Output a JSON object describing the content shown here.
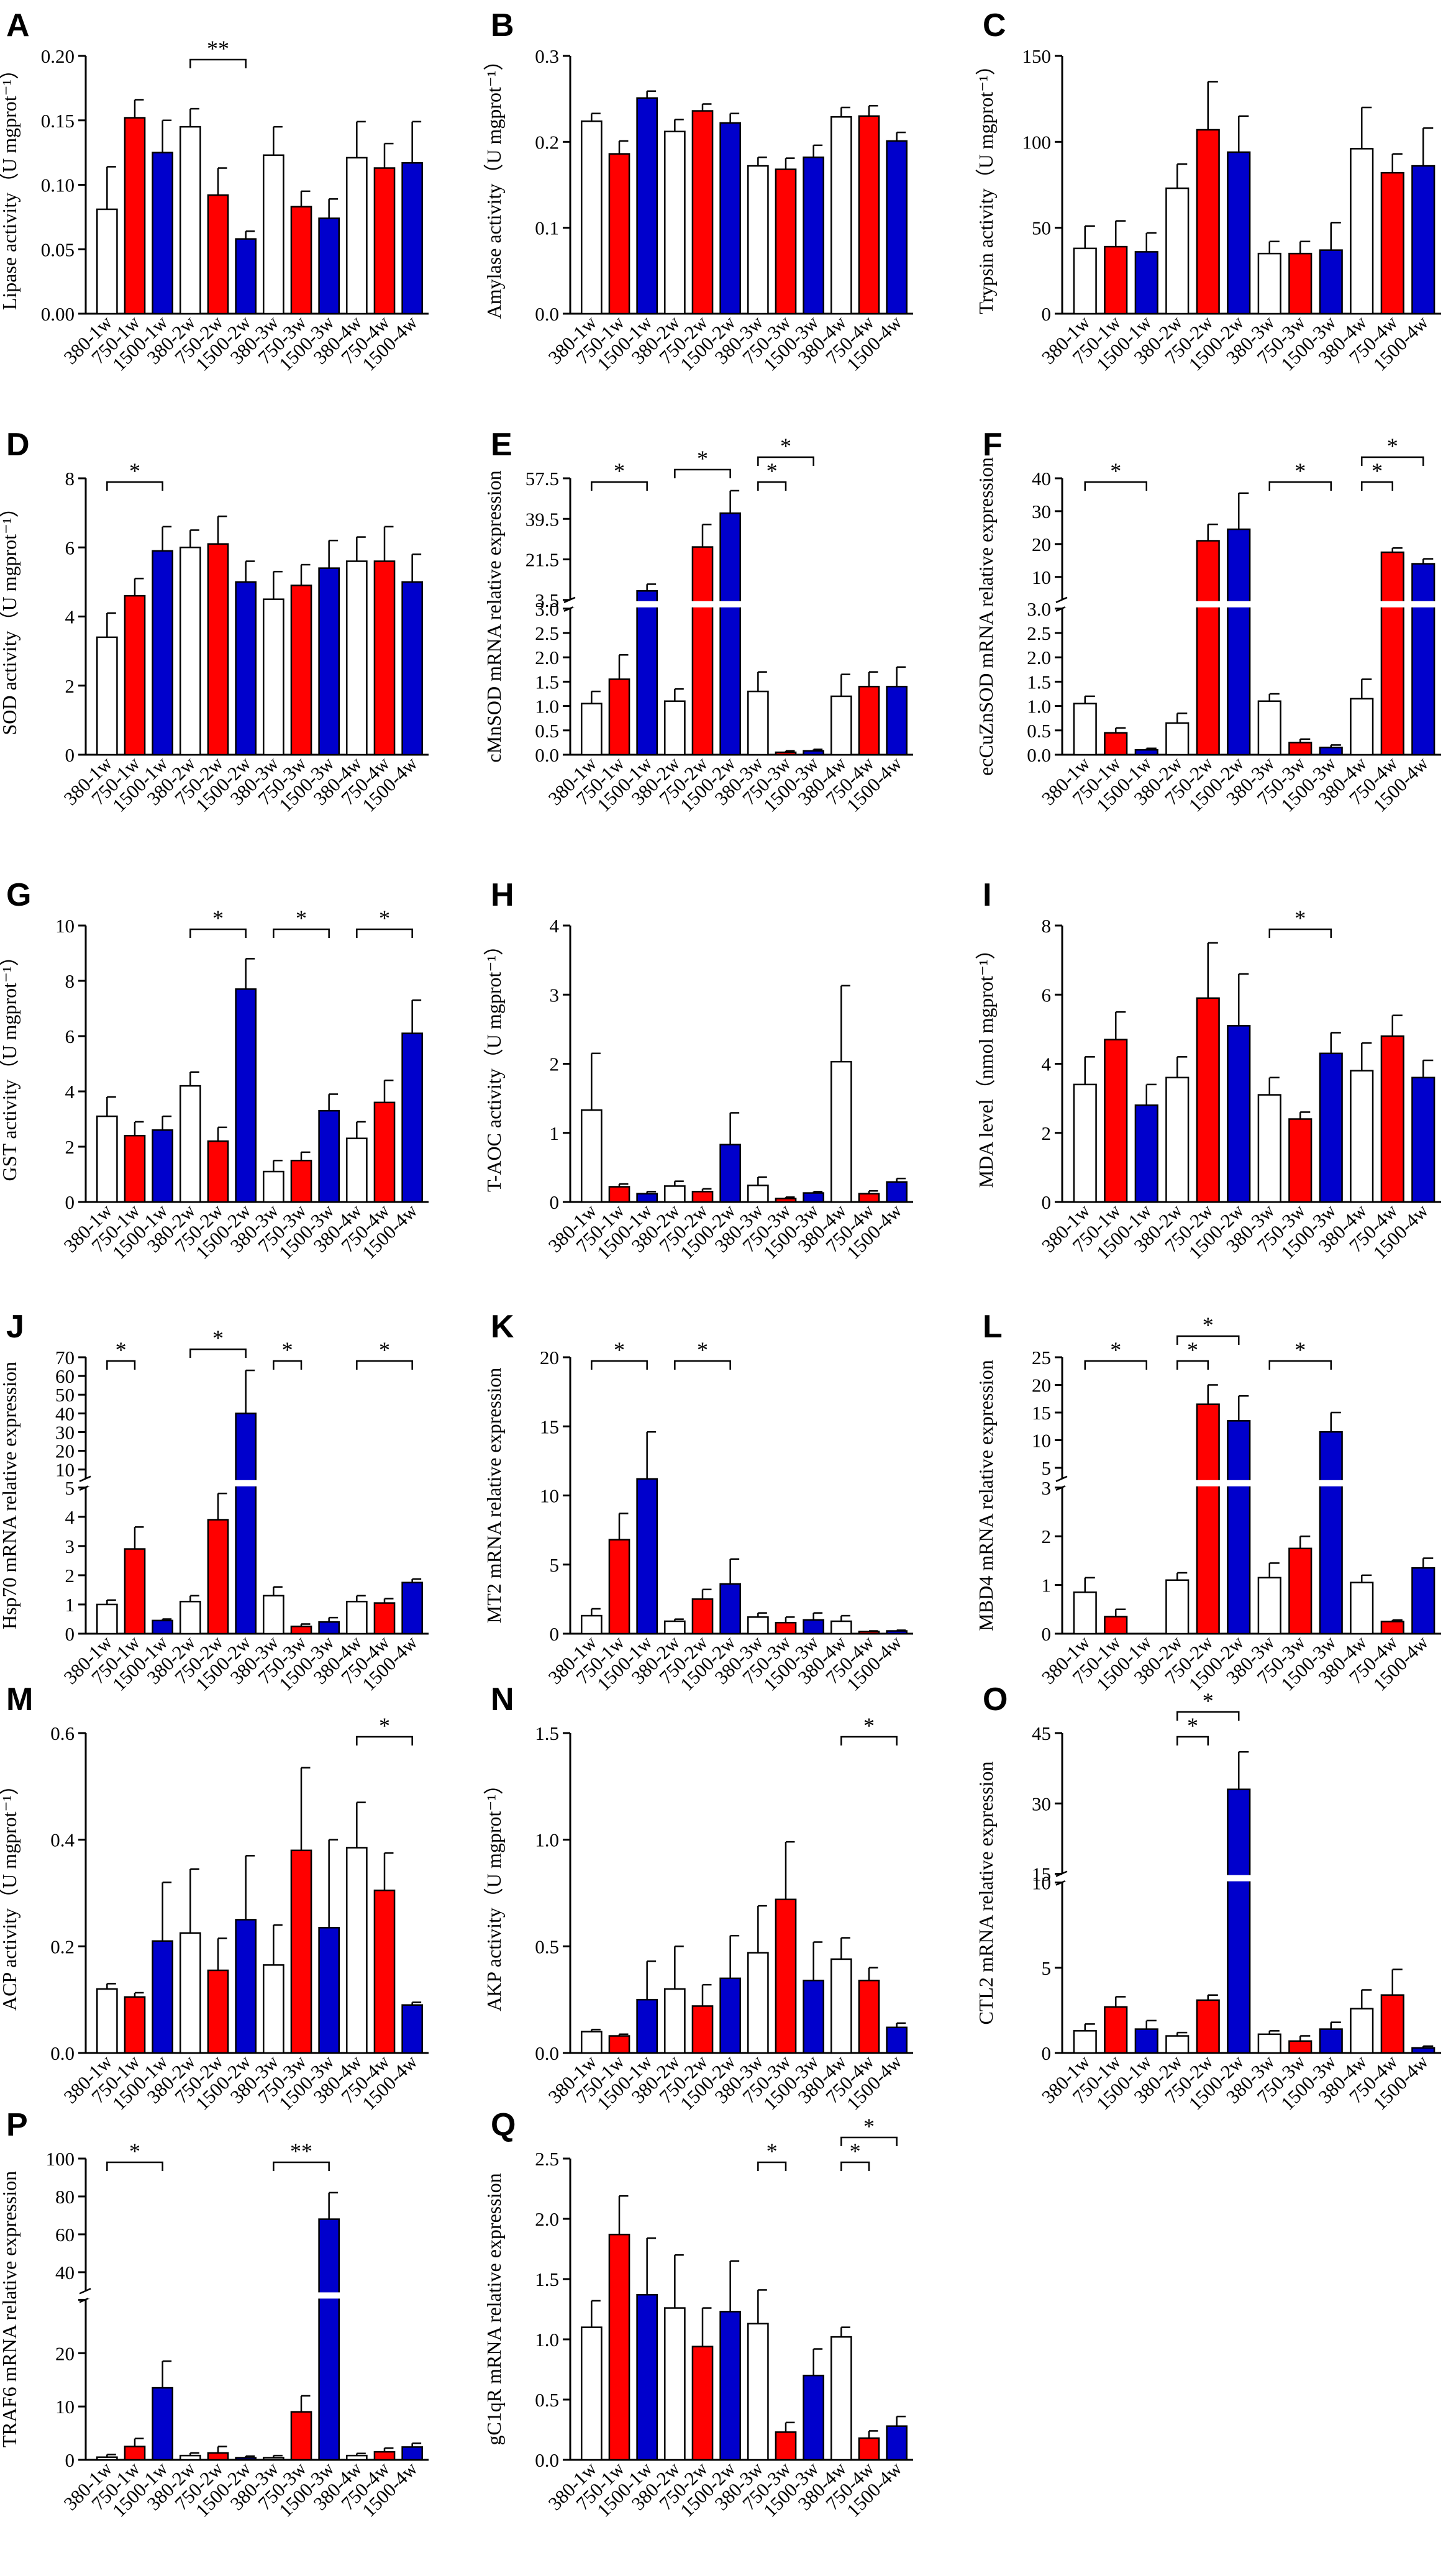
{
  "figure": {
    "categories": [
      "380-1w",
      "750-1w",
      "1500-1w",
      "380-2w",
      "750-2w",
      "1500-2w",
      "380-3w",
      "750-3w",
      "1500-3w",
      "380-4w",
      "750-4w",
      "1500-4w"
    ],
    "bar_colors": [
      "#ffffff",
      "#ff0000",
      "#0000cc",
      "#ffffff",
      "#ff0000",
      "#0000cc",
      "#ffffff",
      "#ff0000",
      "#0000cc",
      "#ffffff",
      "#ff0000",
      "#0000cc"
    ],
    "edge_color": "#000000"
  },
  "chart_data": [
    {
      "panel": "A",
      "type": "bar",
      "ylabel": "Lipase activity（U mgprot⁻¹）",
      "ylim": [
        0,
        0.2
      ],
      "ticks": [
        0,
        0.05,
        0.1,
        0.15,
        0.2
      ],
      "tick_labels": [
        "0.00",
        "0.05",
        "0.10",
        "0.15",
        "0.20"
      ],
      "values": [
        0.081,
        0.152,
        0.125,
        0.145,
        0.092,
        0.058,
        0.123,
        0.083,
        0.074,
        0.121,
        0.113,
        0.117
      ],
      "errors": [
        0.033,
        0.014,
        0.025,
        0.014,
        0.021,
        0.006,
        0.022,
        0.012,
        0.015,
        0.028,
        0.019,
        0.032
      ],
      "annotations": [
        {
          "from": 3,
          "to": 5,
          "label": "**"
        }
      ]
    },
    {
      "panel": "B",
      "type": "bar",
      "ylabel": "Amylase activity（U mgprot⁻¹）",
      "ylim": [
        0,
        0.3
      ],
      "ticks": [
        0,
        0.1,
        0.2,
        0.3
      ],
      "tick_labels": [
        "0.0",
        "0.1",
        "0.2",
        "0.3"
      ],
      "values": [
        0.224,
        0.186,
        0.251,
        0.212,
        0.236,
        0.222,
        0.172,
        0.168,
        0.182,
        0.229,
        0.23,
        0.201
      ],
      "errors": [
        0.009,
        0.015,
        0.008,
        0.014,
        0.008,
        0.011,
        0.01,
        0.013,
        0.014,
        0.011,
        0.012,
        0.01
      ],
      "annotations": []
    },
    {
      "panel": "C",
      "type": "bar",
      "ylabel": "Trypsin activity（U mgprot⁻¹）",
      "ylim": [
        0,
        150
      ],
      "ticks": [
        0,
        50,
        100,
        150
      ],
      "tick_labels": [
        "0",
        "50",
        "100",
        "150"
      ],
      "values": [
        38,
        39,
        36,
        73,
        107,
        94,
        35,
        35,
        37,
        96,
        82,
        86
      ],
      "errors": [
        13,
        15,
        11,
        14,
        28,
        21,
        7,
        7,
        16,
        24,
        11,
        22
      ],
      "annotations": []
    },
    {
      "panel": "D",
      "type": "bar",
      "ylabel": "SOD activity（U mgprot⁻¹）",
      "ylim": [
        0,
        8
      ],
      "ticks": [
        0,
        2,
        4,
        6,
        8
      ],
      "tick_labels": [
        "0",
        "2",
        "4",
        "6",
        "8"
      ],
      "values": [
        3.4,
        4.6,
        5.9,
        6.0,
        6.1,
        5.0,
        4.5,
        4.9,
        5.4,
        5.6,
        5.6,
        5.0
      ],
      "errors": [
        0.7,
        0.5,
        0.7,
        0.5,
        0.8,
        0.6,
        0.8,
        0.6,
        0.8,
        0.7,
        1.0,
        0.8
      ],
      "annotations": [
        {
          "from": 0,
          "to": 2,
          "label": "*"
        }
      ]
    },
    {
      "panel": "E",
      "type": "bar",
      "ylabel": "cMnSOD mRNA relative expression",
      "broken_axis": {
        "lower": [
          0,
          3
        ],
        "upper": [
          3.5,
          57.5
        ]
      },
      "lower_ticks": [
        0,
        0.5,
        1,
        1.5,
        2,
        2.5,
        3
      ],
      "lower_tick_labels": [
        "0.0",
        "0.5",
        "1.0",
        "1.5",
        "2.0",
        "2.5",
        "3.0"
      ],
      "upper_ticks": [
        3.5,
        21.5,
        39.5,
        57.5
      ],
      "upper_tick_labels": [
        "3.5",
        "21.5",
        "39.5",
        "57.5"
      ],
      "values": [
        1.05,
        1.55,
        7.5,
        1.1,
        27,
        42,
        1.3,
        0.05,
        0.08,
        1.2,
        1.4,
        1.4
      ],
      "errors": [
        0.25,
        0.5,
        3,
        0.25,
        10,
        10,
        0.4,
        0.03,
        0.03,
        0.45,
        0.3,
        0.4
      ],
      "annotations": [
        {
          "from": 0,
          "to": 2,
          "label": "*"
        },
        {
          "from": 3,
          "to": 5,
          "label": "*"
        },
        {
          "from": 6,
          "to": 7,
          "label": "*"
        },
        {
          "from": 6,
          "to": 8,
          "label": "*"
        }
      ]
    },
    {
      "panel": "F",
      "type": "bar",
      "ylabel": "ecCuZnSOD mRNA relative expression",
      "broken_axis": {
        "lower": [
          0,
          3
        ],
        "upper": [
          3,
          40
        ]
      },
      "lower_ticks": [
        0,
        0.5,
        1,
        1.5,
        2,
        2.5,
        3
      ],
      "lower_tick_labels": [
        "0.0",
        "0.5",
        "1.0",
        "1.5",
        "2.0",
        "2.5",
        "3.0"
      ],
      "upper_ticks": [
        10,
        20,
        30,
        40
      ],
      "upper_tick_labels": [
        "10",
        "20",
        "30",
        "40"
      ],
      "values": [
        1.05,
        0.45,
        0.1,
        0.65,
        21,
        24.5,
        1.1,
        0.25,
        0.15,
        1.15,
        17.5,
        14
      ],
      "errors": [
        0.15,
        0.1,
        0.03,
        0.2,
        5,
        11,
        0.15,
        0.07,
        0.05,
        0.4,
        1.3,
        1.5
      ],
      "annotations": [
        {
          "from": 0,
          "to": 2,
          "label": "*"
        },
        {
          "from": 6,
          "to": 8,
          "label": "*"
        },
        {
          "from": 9,
          "to": 10,
          "label": "*"
        },
        {
          "from": 9,
          "to": 11,
          "label": "*"
        }
      ]
    },
    {
      "panel": "G",
      "type": "bar",
      "ylabel": "GST activity（U mgprot⁻¹）",
      "ylim": [
        0,
        10
      ],
      "ticks": [
        0,
        2,
        4,
        6,
        8,
        10
      ],
      "tick_labels": [
        "0",
        "2",
        "4",
        "6",
        "8",
        "10"
      ],
      "values": [
        3.1,
        2.4,
        2.6,
        4.2,
        2.2,
        7.7,
        1.1,
        1.5,
        3.3,
        2.3,
        3.6,
        6.1
      ],
      "errors": [
        0.7,
        0.5,
        0.5,
        0.5,
        0.5,
        1.1,
        0.4,
        0.3,
        0.6,
        0.6,
        0.8,
        1.2
      ],
      "annotations": [
        {
          "from": 3,
          "to": 5,
          "label": "*"
        },
        {
          "from": 6,
          "to": 8,
          "label": "*"
        },
        {
          "from": 9,
          "to": 11,
          "label": "*"
        }
      ]
    },
    {
      "panel": "H",
      "type": "bar",
      "ylabel": "T-AOC activity（U mgprot⁻¹）",
      "ylim": [
        0,
        4
      ],
      "ticks": [
        0,
        1,
        2,
        3,
        4
      ],
      "tick_labels": [
        "0",
        "1",
        "2",
        "3",
        "4"
      ],
      "values": [
        1.33,
        0.22,
        0.12,
        0.23,
        0.15,
        0.83,
        0.24,
        0.05,
        0.13,
        2.03,
        0.12,
        0.29
      ],
      "errors": [
        0.82,
        0.04,
        0.03,
        0.07,
        0.04,
        0.46,
        0.12,
        0.02,
        0.02,
        1.1,
        0.04,
        0.05
      ],
      "annotations": []
    },
    {
      "panel": "I",
      "type": "bar",
      "ylabel": "MDA level（nmol mgprot⁻¹）",
      "ylim": [
        0,
        8
      ],
      "ticks": [
        0,
        2,
        4,
        6,
        8
      ],
      "tick_labels": [
        "0",
        "2",
        "4",
        "6",
        "8"
      ],
      "values": [
        3.4,
        4.7,
        2.8,
        3.6,
        5.9,
        5.1,
        3.1,
        2.4,
        4.3,
        3.8,
        4.8,
        3.6
      ],
      "errors": [
        0.8,
        0.8,
        0.6,
        0.6,
        1.6,
        1.5,
        0.5,
        0.2,
        0.6,
        0.8,
        0.6,
        0.5
      ],
      "annotations": [
        {
          "from": 6,
          "to": 8,
          "label": "*"
        }
      ]
    },
    {
      "panel": "J",
      "type": "bar",
      "ylabel": "Hsp70 mRNA relative expression",
      "broken_axis": {
        "lower": [
          0,
          5
        ],
        "upper": [
          5,
          70
        ]
      },
      "lower_ticks": [
        0,
        1,
        2,
        3,
        4,
        5
      ],
      "lower_tick_labels": [
        "0",
        "1",
        "2",
        "3",
        "4",
        "5"
      ],
      "upper_ticks": [
        10,
        20,
        30,
        40,
        50,
        60,
        70
      ],
      "upper_tick_labels": [
        "10",
        "20",
        "30",
        "40",
        "50",
        "60",
        "70"
      ],
      "values": [
        1.0,
        2.9,
        0.45,
        1.1,
        3.9,
        40,
        1.3,
        0.25,
        0.4,
        1.1,
        1.05,
        1.75
      ],
      "errors": [
        0.15,
        0.75,
        0.05,
        0.2,
        0.9,
        23,
        0.3,
        0.08,
        0.15,
        0.2,
        0.15,
        0.12
      ],
      "annotations": [
        {
          "from": 0,
          "to": 1,
          "label": "*"
        },
        {
          "from": 3,
          "to": 5,
          "label": "*"
        },
        {
          "from": 6,
          "to": 7,
          "label": "*"
        },
        {
          "from": 9,
          "to": 11,
          "label": "*"
        }
      ]
    },
    {
      "panel": "K",
      "type": "bar",
      "ylabel": "MT2 mRNA relative expression",
      "ylim": [
        0,
        20
      ],
      "ticks": [
        0,
        5,
        10,
        15,
        20
      ],
      "tick_labels": [
        "0",
        "5",
        "10",
        "15",
        "20"
      ],
      "values": [
        1.3,
        6.8,
        11.2,
        0.9,
        2.5,
        3.6,
        1.2,
        0.8,
        1.0,
        0.9,
        0.15,
        0.2
      ],
      "errors": [
        0.5,
        1.9,
        3.4,
        0.15,
        0.7,
        1.8,
        0.3,
        0.4,
        0.5,
        0.4,
        0.05,
        0.05
      ],
      "annotations": [
        {
          "from": 0,
          "to": 2,
          "label": "*"
        },
        {
          "from": 3,
          "to": 5,
          "label": "*"
        }
      ]
    },
    {
      "panel": "L",
      "type": "bar",
      "ylabel": "MBD4 mRNA relative expression",
      "broken_axis": {
        "lower": [
          0,
          3
        ],
        "upper": [
          3,
          25
        ]
      },
      "lower_ticks": [
        0,
        1,
        2,
        3
      ],
      "lower_tick_labels": [
        "0",
        "1",
        "2",
        "3"
      ],
      "upper_ticks": [
        5,
        10,
        15,
        20,
        25
      ],
      "upper_tick_labels": [
        "5",
        "10",
        "15",
        "20",
        "25"
      ],
      "values": [
        0.85,
        0.35,
        0,
        1.1,
        16.5,
        13.5,
        1.15,
        1.75,
        11.5,
        1.05,
        0.25,
        1.35
      ],
      "errors": [
        0.3,
        0.15,
        0,
        0.15,
        3.5,
        4.5,
        0.3,
        0.25,
        3.5,
        0.15,
        0.03,
        0.2
      ],
      "annotations": [
        {
          "from": 0,
          "to": 2,
          "label": "*"
        },
        {
          "from": 3,
          "to": 4,
          "label": "*"
        },
        {
          "from": 3,
          "to": 5,
          "label": "*"
        },
        {
          "from": 6,
          "to": 8,
          "label": "*"
        }
      ]
    },
    {
      "panel": "M",
      "type": "bar",
      "ylabel": "ACP activity（U mgprot⁻¹）",
      "ylim": [
        0,
        0.6
      ],
      "ticks": [
        0,
        0.2,
        0.4,
        0.6
      ],
      "tick_labels": [
        "0.0",
        "0.2",
        "0.4",
        "0.6"
      ],
      "values": [
        0.12,
        0.105,
        0.21,
        0.225,
        0.155,
        0.25,
        0.165,
        0.38,
        0.235,
        0.385,
        0.305,
        0.09
      ],
      "errors": [
        0.01,
        0.008,
        0.11,
        0.12,
        0.06,
        0.12,
        0.075,
        0.155,
        0.165,
        0.085,
        0.07,
        0.005
      ],
      "annotations": [
        {
          "from": 9,
          "to": 11,
          "label": "*"
        }
      ]
    },
    {
      "panel": "N",
      "type": "bar",
      "ylabel": "AKP activity（U mgprot⁻¹）",
      "ylim": [
        0,
        1.5
      ],
      "ticks": [
        0,
        0.5,
        1,
        1.5
      ],
      "tick_labels": [
        "0.0",
        "0.5",
        "1.0",
        "1.5"
      ],
      "values": [
        0.1,
        0.08,
        0.25,
        0.3,
        0.22,
        0.35,
        0.47,
        0.72,
        0.34,
        0.44,
        0.34,
        0.12
      ],
      "errors": [
        0.01,
        0.008,
        0.18,
        0.2,
        0.1,
        0.2,
        0.22,
        0.27,
        0.18,
        0.1,
        0.06,
        0.02
      ],
      "annotations": [
        {
          "from": 9,
          "to": 11,
          "label": "*"
        }
      ]
    },
    {
      "panel": "O",
      "type": "bar",
      "ylabel": "CTL2 mRNA relative expression",
      "broken_axis": {
        "lower": [
          0,
          10
        ],
        "upper": [
          15,
          45
        ]
      },
      "lower_ticks": [
        0,
        5,
        10
      ],
      "lower_tick_labels": [
        "0",
        "5",
        "10"
      ],
      "upper_ticks": [
        15,
        30,
        45
      ],
      "upper_tick_labels": [
        "15",
        "30",
        "45"
      ],
      "values": [
        1.3,
        2.7,
        1.4,
        1.0,
        3.1,
        33,
        1.1,
        0.7,
        1.4,
        2.6,
        3.4,
        0.3
      ],
      "errors": [
        0.4,
        0.6,
        0.5,
        0.2,
        0.3,
        8,
        0.2,
        0.3,
        0.4,
        1.1,
        1.5,
        0.1
      ],
      "annotations": [
        {
          "from": 3,
          "to": 4,
          "label": "*"
        },
        {
          "from": 3,
          "to": 5,
          "label": "*"
        }
      ]
    },
    {
      "panel": "P",
      "type": "bar",
      "ylabel": "TRAF6 mRNA relative expression",
      "broken_axis": {
        "lower": [
          0,
          30
        ],
        "upper": [
          30,
          100
        ]
      },
      "lower_ticks": [
        0,
        10,
        20,
        30
      ],
      "lower_tick_labels": [
        "0",
        "10",
        "20",
        ""
      ],
      "upper_ticks": [
        40,
        60,
        80,
        100
      ],
      "upper_tick_labels": [
        "40",
        "60",
        "80",
        "100"
      ],
      "values": [
        0.5,
        2.5,
        13.5,
        0.8,
        1.3,
        0.4,
        0.4,
        9,
        68,
        0.8,
        1.5,
        2.4
      ],
      "errors": [
        0.5,
        1.5,
        5,
        0.5,
        1.2,
        0.3,
        0.4,
        3,
        14,
        0.4,
        0.7,
        0.7
      ],
      "annotations": [
        {
          "from": 0,
          "to": 2,
          "label": "*"
        },
        {
          "from": 6,
          "to": 8,
          "label": "**"
        }
      ]
    },
    {
      "panel": "Q",
      "type": "bar",
      "ylabel": "gC1qR mRNA relative expression",
      "ylim": [
        0,
        2.5
      ],
      "ticks": [
        0,
        0.5,
        1,
        1.5,
        2,
        2.5
      ],
      "tick_labels": [
        "0.0",
        "0.5",
        "1.0",
        "1.5",
        "2.0",
        "2.5"
      ],
      "values": [
        1.1,
        1.87,
        1.37,
        1.26,
        0.94,
        1.23,
        1.13,
        0.23,
        0.7,
        1.02,
        0.18,
        0.28
      ],
      "errors": [
        0.22,
        0.32,
        0.47,
        0.44,
        0.32,
        0.42,
        0.28,
        0.08,
        0.22,
        0.08,
        0.06,
        0.08
      ],
      "annotations": [
        {
          "from": 6,
          "to": 7,
          "label": "*"
        },
        {
          "from": 9,
          "to": 10,
          "label": "*"
        },
        {
          "from": 9,
          "to": 11,
          "label": "*"
        }
      ]
    }
  ]
}
